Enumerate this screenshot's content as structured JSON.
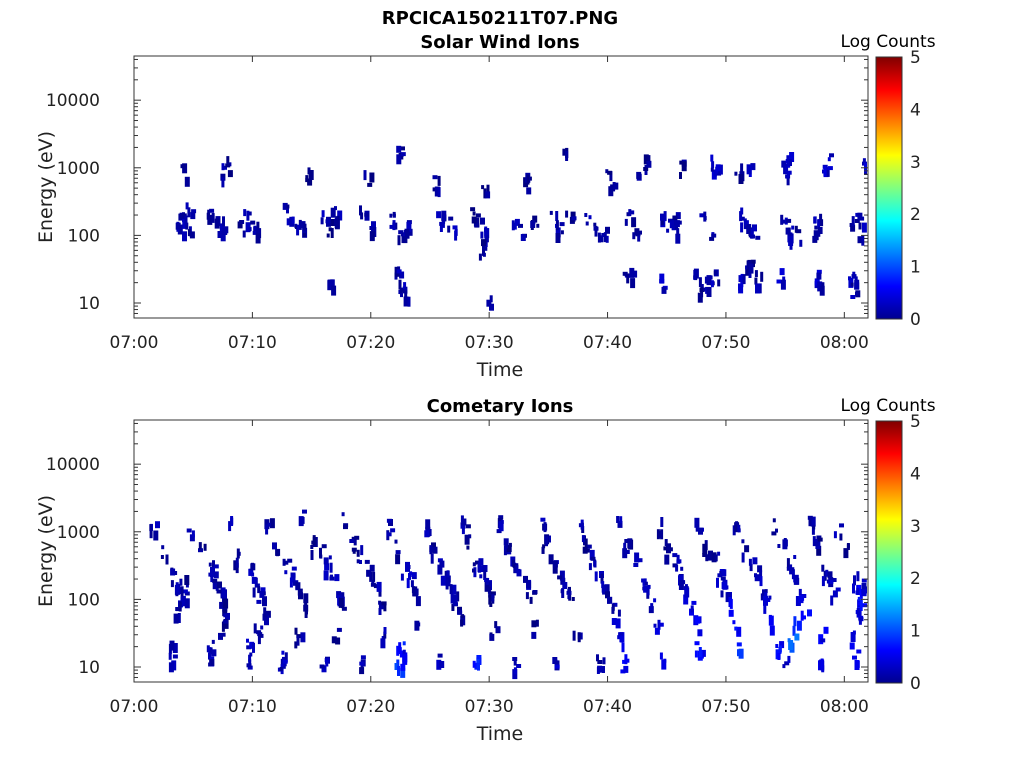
{
  "figure_title": "RPCICA150211T07.PNG",
  "colorbar": {
    "label": "Log Counts",
    "ticks": [
      "0",
      "1",
      "2",
      "3",
      "4",
      "5"
    ],
    "range": [
      0,
      5
    ],
    "colormap": "jet"
  },
  "chart_data": [
    {
      "type": "heatmap",
      "title": "Solar Wind Ions",
      "xlabel": "Time",
      "ylabel": "Energy (eV)",
      "y_scale": "log",
      "ylim": [
        6,
        45000
      ],
      "xlim": [
        "07:00",
        "08:02"
      ],
      "x_ticks": [
        "07:00",
        "07:10",
        "07:20",
        "07:30",
        "07:40",
        "07:50",
        "08:00"
      ],
      "y_ticks": [
        "10",
        "100",
        "1000",
        "10000"
      ],
      "points": [
        [
          4.0,
          210,
          0.2
        ],
        [
          4.3,
          170,
          0.2
        ],
        [
          4.6,
          240,
          0.3
        ],
        [
          3.8,
          140,
          0.2
        ],
        [
          4.5,
          120,
          0.1
        ],
        [
          4.2,
          900,
          0.2
        ],
        [
          6.4,
          200,
          0.2
        ],
        [
          6.8,
          170,
          0.2
        ],
        [
          7.3,
          150,
          0.2
        ],
        [
          7.5,
          900,
          0.2
        ],
        [
          7.9,
          1150,
          0.1
        ],
        [
          9.5,
          200,
          0.2
        ],
        [
          9.9,
          150,
          0.2
        ],
        [
          10.3,
          130,
          0.1
        ],
        [
          8.9,
          140,
          0.1
        ],
        [
          12.8,
          230,
          0.2
        ],
        [
          13.4,
          170,
          0.2
        ],
        [
          13.8,
          130,
          0.2
        ],
        [
          14.1,
          120,
          0.1
        ],
        [
          14.5,
          800,
          0.1
        ],
        [
          16.0,
          180,
          0.2
        ],
        [
          16.4,
          140,
          0.1
        ],
        [
          16.9,
          210,
          0.2
        ],
        [
          16.5,
          20,
          0.1
        ],
        [
          17.2,
          170,
          0.1
        ],
        [
          19.2,
          220,
          0.2
        ],
        [
          19.8,
          150,
          0.2
        ],
        [
          19.6,
          750,
          0.1
        ],
        [
          21.8,
          170,
          0.2
        ],
        [
          22.5,
          120,
          0.2
        ],
        [
          22.9,
          130,
          0.2
        ],
        [
          22.2,
          28,
          0.2
        ],
        [
          22.6,
          18,
          0.2
        ],
        [
          23.0,
          14,
          0.1
        ],
        [
          22.4,
          1700,
          0.1
        ],
        [
          25.8,
          200,
          0.2
        ],
        [
          26.3,
          150,
          0.2
        ],
        [
          26.8,
          120,
          0.2
        ],
        [
          25.5,
          650,
          0.1
        ],
        [
          29.0,
          180,
          0.2
        ],
        [
          29.4,
          140,
          0.2
        ],
        [
          29.8,
          120,
          0.2
        ],
        [
          28.4,
          200,
          0.1
        ],
        [
          29.5,
          500,
          0.1
        ],
        [
          29.3,
          70,
          0.1
        ],
        [
          30.0,
          11,
          0.1
        ],
        [
          32.0,
          180,
          0.2
        ],
        [
          32.6,
          120,
          0.2
        ],
        [
          33.1,
          650,
          0.1
        ],
        [
          33.7,
          150,
          0.1
        ],
        [
          35.3,
          190,
          0.2
        ],
        [
          35.9,
          130,
          0.2
        ],
        [
          36.3,
          1900,
          0.1
        ],
        [
          36.7,
          180,
          0.1
        ],
        [
          38.3,
          200,
          0.2
        ],
        [
          38.9,
          130,
          0.2
        ],
        [
          39.6,
          110,
          0.2
        ],
        [
          39.9,
          900,
          0.1
        ],
        [
          40.2,
          500,
          0.1
        ],
        [
          41.7,
          190,
          0.2
        ],
        [
          42.3,
          120,
          0.2
        ],
        [
          41.3,
          25,
          0.2
        ],
        [
          41.9,
          28,
          0.2
        ],
        [
          42.4,
          1000,
          0.1
        ],
        [
          43.2,
          1200,
          0.1
        ],
        [
          44.7,
          210,
          0.2
        ],
        [
          45.2,
          150,
          0.2
        ],
        [
          45.5,
          110,
          0.2
        ],
        [
          44.5,
          22,
          0.3
        ],
        [
          46.1,
          1100,
          0.1
        ],
        [
          45.6,
          180,
          0.1
        ],
        [
          48.0,
          180,
          0.2
        ],
        [
          48.6,
          120,
          0.2
        ],
        [
          48.9,
          1200,
          0.3
        ],
        [
          49.2,
          1000,
          0.3
        ],
        [
          47.5,
          25,
          0.2
        ],
        [
          48.2,
          20,
          0.2
        ],
        [
          49.0,
          24,
          0.2
        ],
        [
          47.9,
          16,
          0.1
        ],
        [
          51.4,
          200,
          0.2
        ],
        [
          51.8,
          150,
          0.2
        ],
        [
          52.2,
          120,
          0.2
        ],
        [
          51.9,
          1200,
          0.3
        ],
        [
          51.3,
          25,
          0.3
        ],
        [
          52.6,
          24,
          0.2
        ],
        [
          51.9,
          45,
          0.1
        ],
        [
          52.0,
          35,
          0.1
        ],
        [
          51.0,
          1000,
          0.1
        ],
        [
          54.8,
          200,
          0.2
        ],
        [
          55.3,
          130,
          0.2
        ],
        [
          55.5,
          110,
          0.2
        ],
        [
          54.8,
          1200,
          0.3
        ],
        [
          55.1,
          1000,
          0.3
        ],
        [
          55.3,
          1500,
          0.3
        ],
        [
          54.5,
          25,
          0.3
        ],
        [
          56.1,
          110,
          0.1
        ],
        [
          57.6,
          170,
          0.2
        ],
        [
          58.3,
          1200,
          0.3
        ],
        [
          58.8,
          1350,
          0.3
        ],
        [
          57.5,
          25,
          0.3
        ],
        [
          57.9,
          22,
          0.2
        ],
        [
          57.5,
          120,
          0.1
        ],
        [
          60.7,
          180,
          0.2
        ],
        [
          61.3,
          170,
          0.2
        ],
        [
          61.8,
          1100,
          0.3
        ],
        [
          60.6,
          24,
          0.3
        ],
        [
          60.8,
          16,
          0.2
        ],
        [
          61.3,
          120,
          0.1
        ]
      ]
    },
    {
      "type": "heatmap",
      "title": "Cometary Ions",
      "xlabel": "Time",
      "ylabel": "Energy (eV)",
      "y_scale": "log",
      "ylim": [
        6,
        45000
      ],
      "xlim": [
        "07:00",
        "08:02"
      ],
      "x_ticks": [
        "07:00",
        "07:10",
        "07:20",
        "07:30",
        "07:40",
        "07:50",
        "08:00"
      ],
      "y_ticks": [
        "10",
        "100",
        "1000",
        "10000"
      ],
      "points": [
        [
          1.5,
          1100,
          0.2
        ],
        [
          2.4,
          550,
          0.1
        ],
        [
          3.3,
          250,
          0.2
        ],
        [
          3.7,
          160,
          0.2
        ],
        [
          4.0,
          110,
          0.2
        ],
        [
          3.5,
          80,
          0.1
        ],
        [
          4.2,
          180,
          0.1
        ],
        [
          3.2,
          20,
          0.3
        ],
        [
          3.1,
          14,
          0.2
        ],
        [
          4.6,
          1200,
          0.2
        ],
        [
          5.7,
          600,
          0.1
        ],
        [
          6.5,
          300,
          0.2
        ],
        [
          6.8,
          200,
          0.2
        ],
        [
          7.2,
          120,
          0.2
        ],
        [
          7.6,
          80,
          0.1
        ],
        [
          6.4,
          20,
          0.3
        ],
        [
          6.3,
          12,
          0.2
        ],
        [
          7.3,
          40,
          0.1
        ],
        [
          8.0,
          1400,
          0.2
        ],
        [
          8.6,
          450,
          0.1
        ],
        [
          9.6,
          280,
          0.2
        ],
        [
          10.0,
          180,
          0.2
        ],
        [
          10.6,
          120,
          0.2
        ],
        [
          11.0,
          70,
          0.1
        ],
        [
          9.7,
          20,
          0.3
        ],
        [
          9.6,
          12,
          0.2
        ],
        [
          10.4,
          40,
          0.1
        ],
        [
          11.3,
          1400,
          0.2
        ],
        [
          11.8,
          600,
          0.1
        ],
        [
          12.7,
          350,
          0.2
        ],
        [
          13.3,
          250,
          0.2
        ],
        [
          13.6,
          150,
          0.2
        ],
        [
          14.1,
          110,
          0.2
        ],
        [
          14.3,
          80,
          0.1
        ],
        [
          12.5,
          16,
          0.3
        ],
        [
          12.3,
          9,
          0.2
        ],
        [
          13.8,
          30,
          0.1
        ],
        [
          14.2,
          1800,
          0.2
        ],
        [
          15.0,
          700,
          0.1
        ],
        [
          15.6,
          550,
          0.1
        ],
        [
          16.3,
          350,
          0.2
        ],
        [
          16.8,
          200,
          0.2
        ],
        [
          17.2,
          130,
          0.2
        ],
        [
          17.5,
          90,
          0.1
        ],
        [
          15.9,
          12,
          0.2
        ],
        [
          17.0,
          30,
          0.1
        ],
        [
          17.8,
          1500,
          0.2
        ],
        [
          18.4,
          700,
          0.1
        ],
        [
          19.1,
          500,
          0.1
        ],
        [
          19.7,
          300,
          0.2
        ],
        [
          20.1,
          200,
          0.2
        ],
        [
          20.5,
          140,
          0.2
        ],
        [
          20.9,
          90,
          0.1
        ],
        [
          19.2,
          12,
          0.2
        ],
        [
          21.1,
          30,
          0.2
        ],
        [
          21.5,
          1200,
          0.2
        ],
        [
          22.1,
          600,
          0.1
        ],
        [
          22.7,
          300,
          0.2
        ],
        [
          23.2,
          200,
          0.3
        ],
        [
          23.6,
          140,
          0.2
        ],
        [
          22.4,
          20,
          0.7
        ],
        [
          22.2,
          10,
          0.9
        ],
        [
          22.6,
          14,
          0.5
        ],
        [
          23.9,
          50,
          0.2
        ],
        [
          24.6,
          1200,
          0.2
        ],
        [
          25.0,
          550,
          0.1
        ],
        [
          25.7,
          350,
          0.2
        ],
        [
          26.2,
          230,
          0.2
        ],
        [
          26.6,
          160,
          0.2
        ],
        [
          27.0,
          110,
          0.1
        ],
        [
          25.8,
          14,
          0.3
        ],
        [
          27.4,
          60,
          0.1
        ],
        [
          27.8,
          1500,
          0.2
        ],
        [
          28.2,
          700,
          0.1
        ],
        [
          28.8,
          350,
          0.2
        ],
        [
          29.3,
          250,
          0.2
        ],
        [
          29.8,
          170,
          0.2
        ],
        [
          30.2,
          110,
          0.1
        ],
        [
          28.7,
          12,
          0.8
        ],
        [
          30.3,
          40,
          0.1
        ],
        [
          30.8,
          1400,
          0.2
        ],
        [
          31.4,
          650,
          0.1
        ],
        [
          31.9,
          400,
          0.2
        ],
        [
          32.5,
          250,
          0.2
        ],
        [
          33.0,
          170,
          0.2
        ],
        [
          33.4,
          120,
          0.1
        ],
        [
          32.0,
          12,
          0.3
        ],
        [
          33.7,
          40,
          0.1
        ],
        [
          34.3,
          1400,
          0.2
        ],
        [
          34.7,
          700,
          0.1
        ],
        [
          35.3,
          400,
          0.2
        ],
        [
          35.9,
          250,
          0.2
        ],
        [
          36.3,
          170,
          0.2
        ],
        [
          36.8,
          120,
          0.1
        ],
        [
          35.6,
          12,
          0.3
        ],
        [
          37.2,
          40,
          0.1
        ],
        [
          37.6,
          1400,
          0.2
        ],
        [
          38.1,
          700,
          0.1
        ],
        [
          38.6,
          450,
          0.2
        ],
        [
          39.2,
          260,
          0.2
        ],
        [
          39.7,
          150,
          0.2
        ],
        [
          40.2,
          100,
          0.2
        ],
        [
          40.6,
          60,
          0.3
        ],
        [
          41.0,
          30,
          0.4
        ],
        [
          41.3,
          12,
          0.5
        ],
        [
          39.3,
          12,
          0.2
        ],
        [
          40.9,
          1400,
          0.2
        ],
        [
          41.5,
          650,
          0.1
        ],
        [
          42.3,
          400,
          0.2
        ],
        [
          42.8,
          250,
          0.2
        ],
        [
          43.2,
          150,
          0.2
        ],
        [
          43.6,
          90,
          0.3
        ],
        [
          44.1,
          40,
          0.4
        ],
        [
          44.6,
          14,
          0.5
        ],
        [
          44.2,
          1300,
          0.2
        ],
        [
          44.9,
          600,
          0.1
        ],
        [
          45.7,
          400,
          0.2
        ],
        [
          46.1,
          250,
          0.2
        ],
        [
          46.5,
          150,
          0.3
        ],
        [
          46.9,
          90,
          0.5
        ],
        [
          47.3,
          45,
          0.6
        ],
        [
          47.6,
          20,
          0.6
        ],
        [
          47.5,
          1300,
          0.2
        ],
        [
          48.2,
          600,
          0.1
        ],
        [
          49.0,
          400,
          0.2
        ],
        [
          49.4,
          250,
          0.3
        ],
        [
          49.8,
          150,
          0.3
        ],
        [
          50.2,
          90,
          0.5
        ],
        [
          50.6,
          45,
          0.6
        ],
        [
          50.9,
          20,
          0.8
        ],
        [
          50.8,
          1300,
          0.2
        ],
        [
          51.5,
          600,
          0.1
        ],
        [
          52.2,
          400,
          0.2
        ],
        [
          52.6,
          250,
          0.3
        ],
        [
          53.0,
          150,
          0.3
        ],
        [
          53.4,
          90,
          0.4
        ],
        [
          53.8,
          45,
          0.5
        ],
        [
          54.2,
          20,
          0.6
        ],
        [
          54.1,
          1300,
          0.2
        ],
        [
          54.6,
          650,
          0.1
        ],
        [
          55.4,
          350,
          0.2
        ],
        [
          55.8,
          200,
          0.3
        ],
        [
          56.2,
          120,
          0.4
        ],
        [
          56.6,
          70,
          0.7
        ],
        [
          55.7,
          45,
          0.9
        ],
        [
          55.5,
          25,
          1.1
        ],
        [
          55.0,
          12,
          0.4
        ],
        [
          57.1,
          1400,
          0.2
        ],
        [
          57.6,
          700,
          0.1
        ],
        [
          58.3,
          250,
          0.2
        ],
        [
          58.7,
          170,
          0.3
        ],
        [
          59.1,
          120,
          0.4
        ],
        [
          58.0,
          30,
          0.5
        ],
        [
          57.8,
          12,
          0.4
        ],
        [
          59.4,
          1200,
          0.2
        ],
        [
          60.0,
          600,
          0.1
        ],
        [
          60.8,
          200,
          0.3
        ],
        [
          61.1,
          130,
          0.5
        ],
        [
          61.4,
          90,
          0.6
        ],
        [
          61.0,
          60,
          0.4
        ],
        [
          60.6,
          30,
          0.5
        ],
        [
          60.9,
          14,
          0.6
        ],
        [
          61.5,
          160,
          0.3
        ]
      ]
    }
  ]
}
